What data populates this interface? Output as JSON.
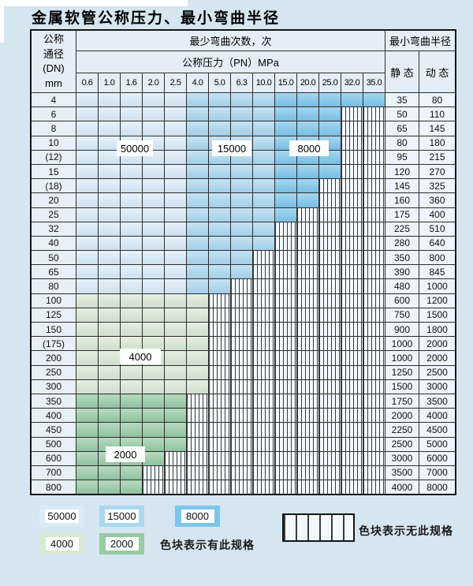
{
  "title": "金属软管公称压力、最小弯曲半径",
  "colors": {
    "page-bg": "#d6e6f0",
    "header-bg": "#e3eef8",
    "c50000": "#d9ebf8",
    "c15000": "#abd7f0",
    "c8000": "#7ec5ea",
    "c4000": "#d9e9d2",
    "c2000": "#97cba3",
    "hatch-bg": "#f3f8fc"
  },
  "table": {
    "header": {
      "dn_label_lines": [
        "公称",
        "通径",
        "(DN)",
        "mm"
      ],
      "bend_cycles_label": "最少弯曲次数，次",
      "pressure_label": "公称压力（PN）MPa",
      "radius_label": "最小弯曲半径",
      "static_label": "静 态",
      "dynamic_label": "动 态",
      "pressures": [
        "0.6",
        "1.0",
        "1.6",
        "2.0",
        "2.5",
        "4.0",
        "5.0",
        "6.3",
        "10.0",
        "15.0",
        "20.0",
        "25.0",
        "32.0",
        "35.0"
      ]
    },
    "zone_legend_note": "zone blue: cols 0-4 = 50000 cycles, cols 5-8 = 15000 cycles, cols 9+ = 8000 cycles; g4000 = 4000 cycles; g2000 = 2000 cycles; uncolored cells = hatched (no such specification)",
    "rows": [
      {
        "dn": "4",
        "colored": 14,
        "zone": "blue",
        "static": "35",
        "dynamic": "80"
      },
      {
        "dn": "6",
        "colored": 12,
        "zone": "blue",
        "static": "50",
        "dynamic": "110"
      },
      {
        "dn": "8",
        "colored": 12,
        "zone": "blue",
        "static": "65",
        "dynamic": "145"
      },
      {
        "dn": "10",
        "colored": 12,
        "zone": "blue",
        "static": "80",
        "dynamic": "180"
      },
      {
        "dn": "(12)",
        "colored": 12,
        "zone": "blue",
        "static": "95",
        "dynamic": "215"
      },
      {
        "dn": "15",
        "colored": 12,
        "zone": "blue",
        "static": "120",
        "dynamic": "270"
      },
      {
        "dn": "(18)",
        "colored": 11,
        "zone": "blue",
        "static": "145",
        "dynamic": "325"
      },
      {
        "dn": "20",
        "colored": 11,
        "zone": "blue",
        "static": "160",
        "dynamic": "360"
      },
      {
        "dn": "25",
        "colored": 10,
        "zone": "blue",
        "static": "175",
        "dynamic": "400"
      },
      {
        "dn": "32",
        "colored": 9,
        "zone": "blue",
        "static": "225",
        "dynamic": "510"
      },
      {
        "dn": "40",
        "colored": 9,
        "zone": "blue",
        "static": "280",
        "dynamic": "640"
      },
      {
        "dn": "50",
        "colored": 8,
        "zone": "blue",
        "static": "350",
        "dynamic": "800"
      },
      {
        "dn": "65",
        "colored": 8,
        "zone": "blue",
        "static": "390",
        "dynamic": "845"
      },
      {
        "dn": "80",
        "colored": 7,
        "zone": "blue",
        "static": "480",
        "dynamic": "1000"
      },
      {
        "dn": "100",
        "colored": 6,
        "zone": "g4000",
        "static": "600",
        "dynamic": "1200"
      },
      {
        "dn": "125",
        "colored": 6,
        "zone": "g4000",
        "static": "750",
        "dynamic": "1500"
      },
      {
        "dn": "150",
        "colored": 6,
        "zone": "g4000",
        "static": "900",
        "dynamic": "1800"
      },
      {
        "dn": "(175)",
        "colored": 6,
        "zone": "g4000",
        "static": "1000",
        "dynamic": "2000"
      },
      {
        "dn": "200",
        "colored": 6,
        "zone": "g4000",
        "static": "1000",
        "dynamic": "2000"
      },
      {
        "dn": "250",
        "colored": 6,
        "zone": "g4000",
        "static": "1250",
        "dynamic": "2500"
      },
      {
        "dn": "300",
        "colored": 6,
        "zone": "g4000",
        "static": "1500",
        "dynamic": "3000"
      },
      {
        "dn": "350",
        "colored": 5,
        "zone": "g2000",
        "static": "1750",
        "dynamic": "3500"
      },
      {
        "dn": "400",
        "colored": 5,
        "zone": "g2000",
        "static": "2000",
        "dynamic": "4000"
      },
      {
        "dn": "450",
        "colored": 5,
        "zone": "g2000",
        "static": "2250",
        "dynamic": "4500"
      },
      {
        "dn": "500",
        "colored": 5,
        "zone": "g2000",
        "static": "2500",
        "dynamic": "5000"
      },
      {
        "dn": "600",
        "colored": 4,
        "zone": "g2000",
        "static": "3000",
        "dynamic": "6000"
      },
      {
        "dn": "700",
        "colored": 3,
        "zone": "g2000",
        "static": "3500",
        "dynamic": "7000"
      },
      {
        "dn": "800",
        "colored": 3,
        "zone": "g2000",
        "static": "4000",
        "dynamic": "8000"
      }
    ]
  },
  "region_labels": {
    "r50000": "50000",
    "r15000": "15000",
    "r8000": "8000",
    "r4000": "4000",
    "r2000": "2000"
  },
  "legend": {
    "items": [
      {
        "label": "50000"
      },
      {
        "label": "15000"
      },
      {
        "label": "8000"
      },
      {
        "label": "4000"
      },
      {
        "label": "2000"
      }
    ],
    "has_spec_text": "色块表示有此规格",
    "no_spec_text": "色块表示无此规格"
  }
}
